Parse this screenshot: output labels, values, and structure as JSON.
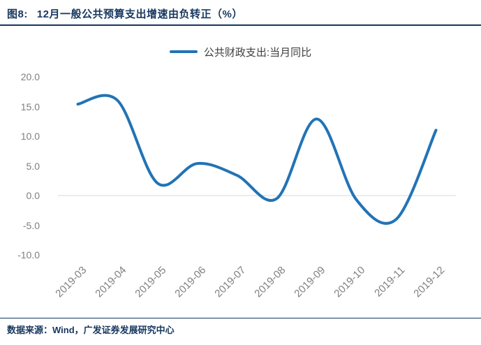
{
  "figure": {
    "title_prefix": "图8:",
    "title": "12月一般公共预算支出增速由负转正（%）",
    "source_note": "数据来源：Wind，广发证券发展研究中心"
  },
  "legend": {
    "label": "公共财政支出:当月同比"
  },
  "colors": {
    "navy": "#17375E",
    "line": "#2273B5",
    "axis_text": "#7F7F7F",
    "gridline": "#D9D9D9",
    "legend_text": "#404040"
  },
  "chart_data": {
    "type": "line",
    "smoothed": true,
    "title": "12月一般公共预算支出增速由负转正（%）",
    "categories": [
      "2019-03",
      "2019-04",
      "2019-05",
      "2019-06",
      "2019-07",
      "2019-08",
      "2019-09",
      "2019-10",
      "2019-11",
      "2019-12"
    ],
    "series": [
      {
        "name": "公共财政支出:当月同比",
        "values": [
          15.4,
          16.0,
          2.1,
          5.4,
          3.4,
          -0.5,
          12.9,
          -0.7,
          -4.0,
          11.0
        ]
      }
    ],
    "xlabel": "",
    "ylabel": "",
    "ylim": [
      -10,
      20
    ],
    "yticks": [
      20,
      15,
      10,
      5,
      0,
      -5,
      -10
    ],
    "ytick_labels": [
      "20.0",
      "15.0",
      "10.0",
      "5.0",
      "0.0",
      "-5.0",
      "-10.0"
    ],
    "grid": "horizontal zero-line only",
    "legend_position": "top-center"
  }
}
